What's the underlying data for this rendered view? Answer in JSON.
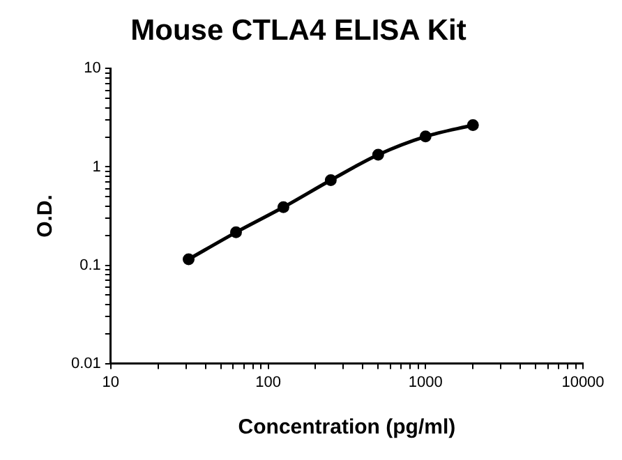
{
  "chart_data": {
    "type": "line",
    "title": "Mouse CTLA4 ELISA Kit",
    "xlabel": "Concentration (pg/ml)",
    "ylabel": "O.D.",
    "x": [
      31.25,
      62.5,
      125,
      250,
      500,
      1000,
      2000
    ],
    "series": [
      {
        "color": "#000000",
        "values": [
          0.115,
          0.216,
          0.389,
          0.733,
          1.33,
          2.04,
          2.66
        ]
      }
    ],
    "log": "xy",
    "xlim": [
      10,
      10000
    ],
    "ylim": [
      0.01,
      10
    ],
    "xticks": [
      10,
      {
        "value": 20,
        "label": null
      },
      {
        "value": 30,
        "label": null
      },
      {
        "value": 40,
        "label": null
      },
      {
        "value": 50,
        "label": null
      },
      {
        "value": 60,
        "label": null
      },
      {
        "value": 70,
        "label": null
      },
      {
        "value": 80,
        "label": null
      },
      {
        "value": 90,
        "label": null
      },
      100,
      {
        "value": 200,
        "label": null
      },
      {
        "value": 300,
        "label": null
      },
      {
        "value": 400,
        "label": null
      },
      {
        "value": 500,
        "label": null
      },
      {
        "value": 600,
        "label": null
      },
      {
        "value": 700,
        "label": null
      },
      {
        "value": 800,
        "label": null
      },
      {
        "value": 900,
        "label": null
      },
      1000,
      {
        "value": 2000,
        "label": null
      },
      {
        "value": 3000,
        "label": null
      },
      {
        "value": 4000,
        "label": null
      },
      {
        "value": 5000,
        "label": null
      },
      {
        "value": 6000,
        "label": null
      },
      {
        "value": 7000,
        "label": null
      },
      {
        "value": 8000,
        "label": null
      },
      {
        "value": 9000,
        "label": null
      },
      10000
    ],
    "yticks": [
      0.01,
      {
        "value": 0.02,
        "label": null
      },
      {
        "value": 0.03,
        "label": null
      },
      {
        "value": 0.04,
        "label": null
      },
      {
        "value": 0.05,
        "label": null
      },
      {
        "value": 0.06,
        "label": null
      },
      {
        "value": 0.07,
        "label": null
      },
      {
        "value": 0.08,
        "label": null
      },
      {
        "value": 0.09,
        "label": null
      },
      0.1,
      {
        "value": 0.2,
        "label": null
      },
      {
        "value": 0.3,
        "label": null
      },
      {
        "value": 0.4,
        "label": null
      },
      {
        "value": 0.5,
        "label": null
      },
      {
        "value": 0.6,
        "label": null
      },
      {
        "value": 0.7,
        "label": null
      },
      {
        "value": 0.8,
        "label": null
      },
      {
        "value": 0.9,
        "label": null
      },
      1,
      {
        "value": 2,
        "label": null
      },
      {
        "value": 3,
        "label": null
      },
      {
        "value": 4,
        "label": null
      },
      {
        "value": 5,
        "label": null
      },
      {
        "value": 6,
        "label": null
      },
      {
        "value": 7,
        "label": null
      },
      {
        "value": 8,
        "label": null
      },
      {
        "value": 9,
        "label": null
      },
      10
    ],
    "grid": false,
    "legend": false,
    "marker": "circle",
    "line_style": "solid"
  }
}
